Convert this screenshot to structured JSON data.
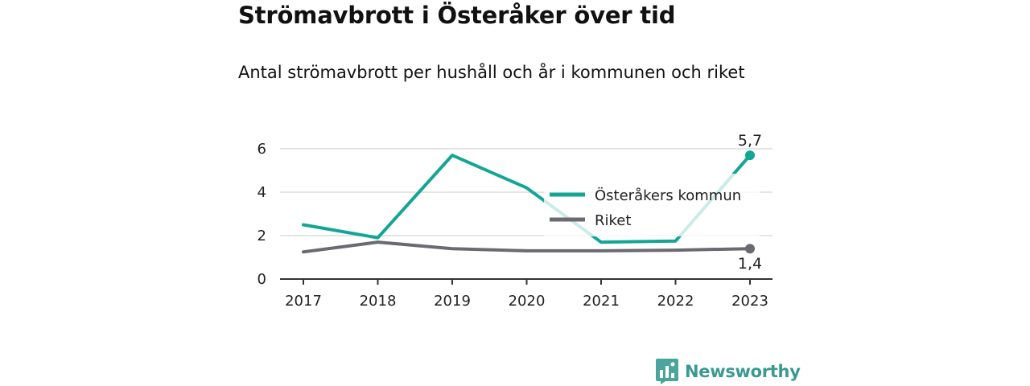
{
  "header": {
    "title": "Strömavbrott i Österåker över tid",
    "subtitle": "Antal strömavbrott per hushåll och år i kommunen och riket"
  },
  "chart_data": {
    "type": "line",
    "title": "Strömavbrott i Österåker över tid",
    "subtitle": "Antal strömavbrott per hushåll och år i kommunen och riket",
    "x": [
      "2017",
      "2018",
      "2019",
      "2020",
      "2021",
      "2022",
      "2023"
    ],
    "ylim": [
      0,
      6
    ],
    "yticks": [
      0,
      2,
      4,
      6
    ],
    "grid": true,
    "legend_placement": "right",
    "series": [
      {
        "name": "Österåkers kommun",
        "color": "#13a595",
        "values": [
          2.5,
          1.9,
          5.7,
          4.2,
          1.7,
          1.75,
          5.7
        ],
        "end_label": "5,7"
      },
      {
        "name": "Riket",
        "color": "#6b6a70",
        "values": [
          1.25,
          1.7,
          1.4,
          1.3,
          1.3,
          1.33,
          1.4
        ],
        "end_label": "1,4"
      }
    ]
  },
  "brand": {
    "name": "Newsworthy",
    "color": "#3a9a92"
  }
}
